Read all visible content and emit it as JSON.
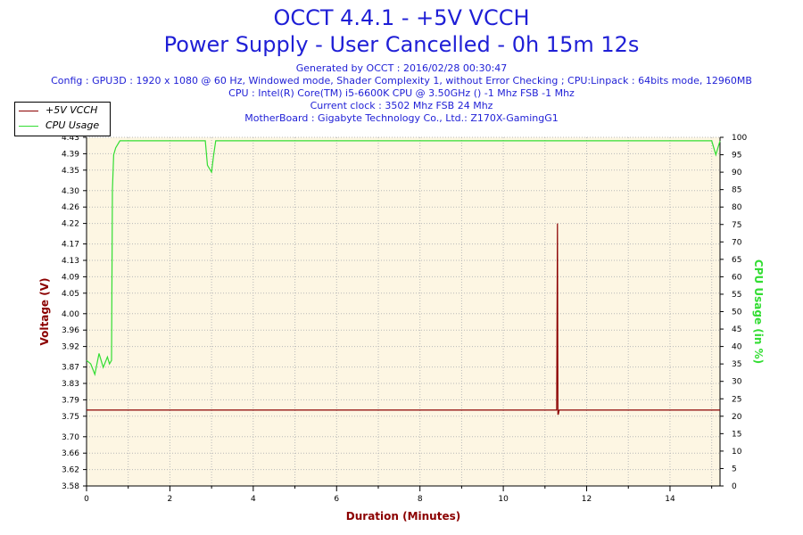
{
  "header": {
    "title": "OCCT 4.4.1 - +5V VCCH",
    "subtitle": "Power Supply - User Cancelled - 0h 15m 12s",
    "generated": "Generated by OCCT : 2016/02/28 00:30:47",
    "config": "Config : GPU3D : 1920 x 1080 @ 60 Hz, Windowed mode, Shader Complexity 1, without Error Checking ; CPU:Linpack : 64bits mode, 12960MB",
    "cpu": "CPU : Intel(R) Core(TM) i5-6600K CPU @ 3.50GHz () -1 Mhz FSB -1 Mhz",
    "clock": "Current clock : 3502 Mhz FSB 24 Mhz",
    "motherboard": "MotherBoard : Gigabyte Technology Co., Ltd.: Z170X-GamingG1"
  },
  "colors": {
    "voltage": "#8b0000",
    "cpu": "#33dd33",
    "plot_bg": "#fdf6e3",
    "grid": "#b8b8b8",
    "title": "#1f1fd6"
  },
  "chart_data": {
    "type": "line",
    "xlabel": "Duration (Minutes)",
    "ylabel": "Voltage (V)",
    "y2label": "CPU Usage (in %)",
    "xlim": [
      0,
      15.2
    ],
    "ylim": [
      3.58,
      4.43
    ],
    "y2lim": [
      0,
      100
    ],
    "x_ticks": [
      0,
      2,
      4,
      6,
      8,
      10,
      12,
      14
    ],
    "y_ticks": [
      3.58,
      3.62,
      3.66,
      3.7,
      3.75,
      3.79,
      3.83,
      3.87,
      3.92,
      3.96,
      4.0,
      4.05,
      4.09,
      4.13,
      4.17,
      4.22,
      4.26,
      4.3,
      4.35,
      4.39,
      4.43
    ],
    "y2_ticks": [
      0,
      5,
      10,
      15,
      20,
      25,
      30,
      35,
      40,
      45,
      50,
      55,
      60,
      65,
      70,
      75,
      80,
      85,
      90,
      95,
      100
    ],
    "grid": true,
    "legend": "top-left",
    "series": [
      {
        "name": "+5V VCCH",
        "axis": "left",
        "x": [
          0,
          11.28,
          11.3,
          11.31,
          11.32,
          11.34,
          15.2
        ],
        "y": [
          3.765,
          3.765,
          4.22,
          3.755,
          3.755,
          3.765,
          3.765
        ]
      },
      {
        "name": "CPU Usage",
        "axis": "right",
        "x": [
          0,
          0.1,
          0.2,
          0.3,
          0.4,
          0.5,
          0.55,
          0.6,
          0.62,
          0.65,
          0.7,
          0.8,
          1.0,
          1.5,
          2.0,
          2.5,
          2.85,
          2.9,
          2.95,
          3.0,
          3.05,
          3.1,
          3.2,
          4.0,
          5.0,
          6.0,
          7.0,
          8.0,
          9.0,
          10.0,
          11.0,
          12.0,
          13.0,
          14.0,
          15.0,
          15.1,
          15.2
        ],
        "y": [
          36,
          35,
          32,
          38,
          34,
          37,
          35,
          36,
          85,
          95,
          97,
          99,
          99,
          99,
          99,
          99,
          99,
          92,
          91,
          90,
          95,
          99,
          99,
          99,
          99,
          99,
          99,
          99,
          99,
          99,
          99,
          99,
          99,
          99,
          99,
          95,
          99
        ]
      }
    ]
  }
}
